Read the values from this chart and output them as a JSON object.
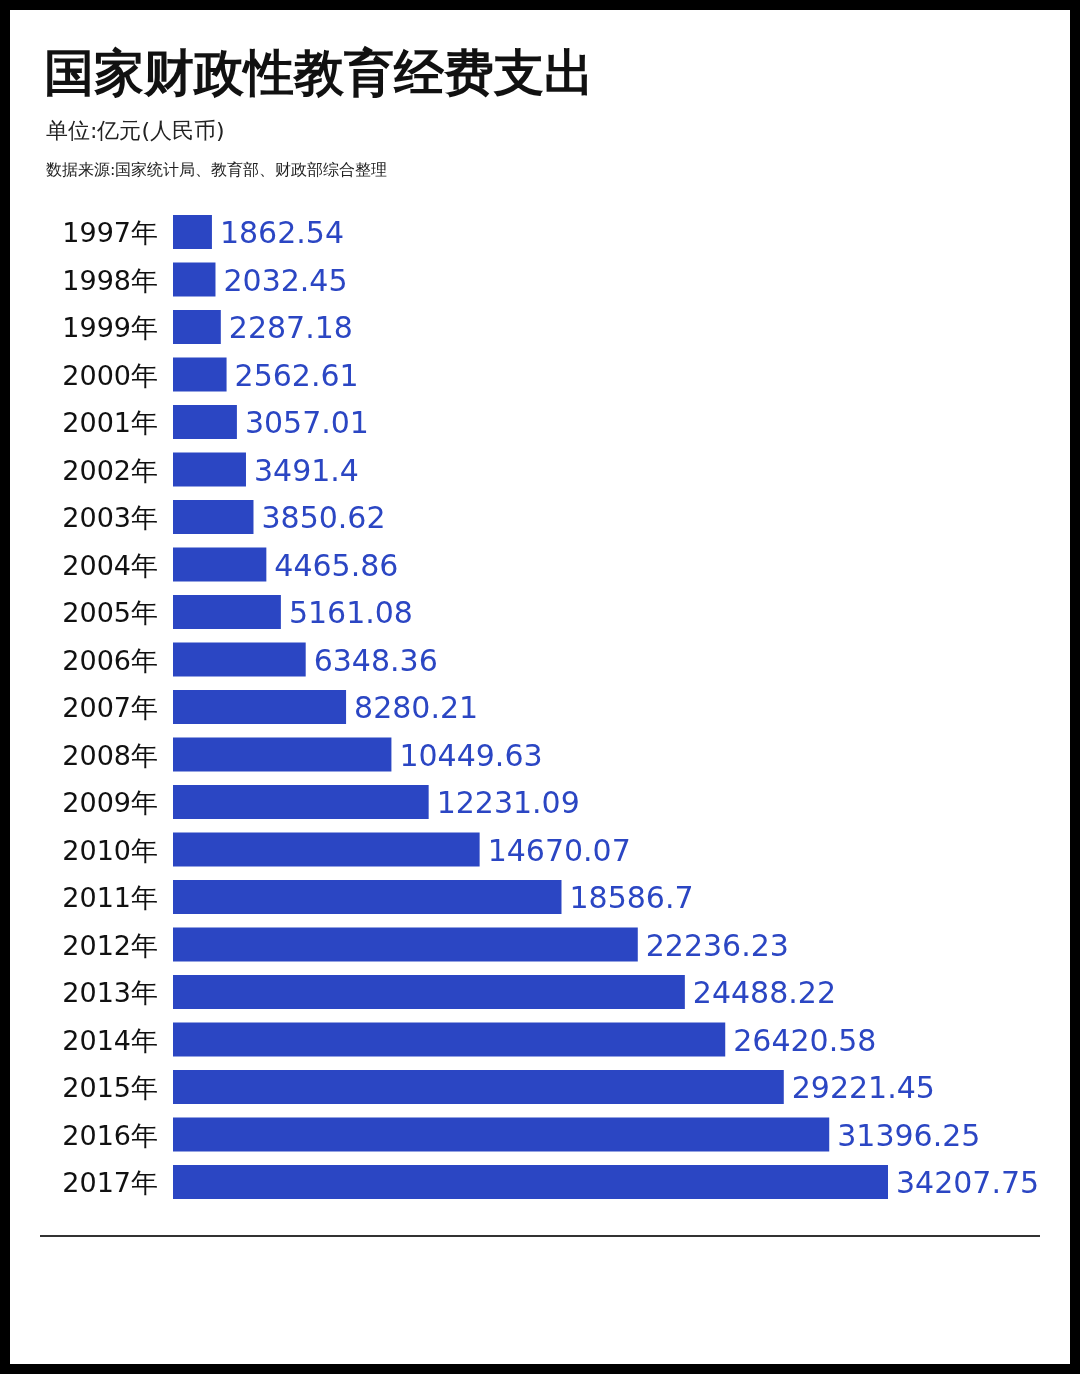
{
  "chart_data": {
    "type": "bar",
    "orientation": "horizontal",
    "title": "国家财政性教育经费支出",
    "subtitle": "单位:亿元(人民币)",
    "annotations": [
      "数据来源:国家统计局、教育部、财政部综合整理"
    ],
    "categories": [
      "1997年",
      "1998年",
      "1999年",
      "2000年",
      "2001年",
      "2002年",
      "2003年",
      "2004年",
      "2005年",
      "2006年",
      "2007年",
      "2008年",
      "2009年",
      "2010年",
      "2011年",
      "2012年",
      "2013年",
      "2014年",
      "2015年",
      "2016年",
      "2017年"
    ],
    "values": [
      1862.54,
      2032.45,
      2287.18,
      2562.61,
      3057.01,
      3491.4,
      3850.62,
      4465.86,
      5161.08,
      6348.36,
      8280.21,
      10449.63,
      12231.09,
      14670.07,
      18586.7,
      22236.23,
      24488.22,
      26420.58,
      29221.45,
      31396.25,
      34207.75
    ],
    "color": "#2b46c3",
    "data_labels": true
  }
}
